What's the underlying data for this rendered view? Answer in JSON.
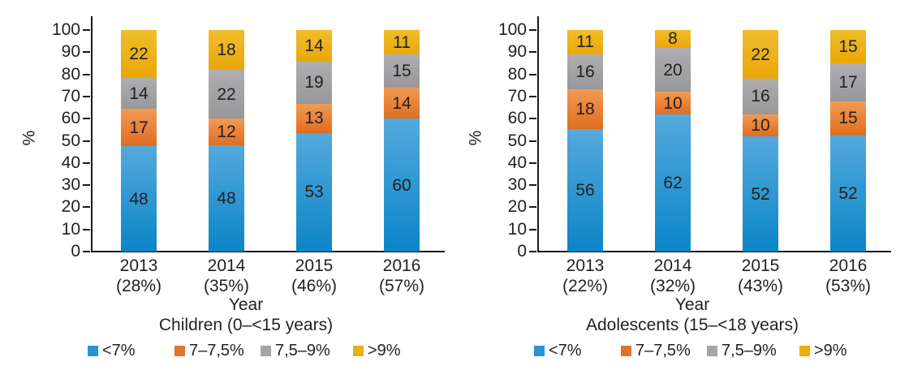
{
  "text_color": "#231f20",
  "axis_color": "#1a1a1a",
  "series_styles": [
    {
      "name": "<7%",
      "gradient_top": "#55a9dc",
      "gradient_bottom": "#0a85c7",
      "legend_color": "#2696d2"
    },
    {
      "name": "7–7,5%",
      "gradient_top": "#f19b54",
      "gradient_bottom": "#e06d20",
      "legend_color": "#e0752c"
    },
    {
      "name": "7,5–9%",
      "gradient_top": "#aeaeb0",
      "gradient_bottom": "#98989a",
      "legend_color": "#a5a5a7"
    },
    {
      "name": ">9%",
      "gradient_top": "#f0bd2c",
      "gradient_bottom": "#e9a708",
      "legend_color": "#eab00e"
    }
  ],
  "chart_data": [
    {
      "type": "bar",
      "stacked": true,
      "group_label": "Children (0–<15 years)",
      "xlabel": "Year",
      "ylabel": "%",
      "ylim": [
        0,
        100
      ],
      "yticks": [
        0,
        10,
        20,
        30,
        40,
        50,
        60,
        70,
        80,
        90,
        100
      ],
      "grid": false,
      "legend_position": "bottom",
      "categories": [
        "2013",
        "2014",
        "2015",
        "2016"
      ],
      "category_sublabels": [
        "(28%)",
        "(35%)",
        "(46%)",
        "(57%)"
      ],
      "series": [
        {
          "name": "<7%",
          "values": [
            48,
            48,
            53,
            60
          ]
        },
        {
          "name": "7–7,5%",
          "values": [
            17,
            12,
            13,
            14
          ]
        },
        {
          "name": "7,5–9%",
          "values": [
            14,
            22,
            19,
            15
          ]
        },
        {
          "name": ">9%",
          "values": [
            22,
            18,
            14,
            11
          ]
        }
      ],
      "legend": [
        "<7%",
        "7–7,5%",
        "7,5–9%",
        ">9%"
      ]
    },
    {
      "type": "bar",
      "stacked": true,
      "group_label": "Adolescents (15–<18 years)",
      "xlabel": "Year",
      "ylabel": "%",
      "ylim": [
        0,
        100
      ],
      "yticks": [
        0,
        10,
        20,
        30,
        40,
        50,
        60,
        70,
        80,
        90,
        100
      ],
      "grid": false,
      "legend_position": "bottom",
      "categories": [
        "2013",
        "2014",
        "2015",
        "2016"
      ],
      "category_sublabels": [
        "(22%)",
        "(32%)",
        "(43%)",
        "(53%)"
      ],
      "series": [
        {
          "name": "<7%",
          "values": [
            56,
            62,
            52,
            52
          ]
        },
        {
          "name": "7–7,5%",
          "values": [
            18,
            10,
            10,
            15
          ]
        },
        {
          "name": "7,5–9%",
          "values": [
            16,
            20,
            16,
            17
          ]
        },
        {
          "name": ">9%",
          "values": [
            11,
            8,
            22,
            15
          ]
        }
      ],
      "legend": [
        "<7%",
        "7–7,5%",
        "7,5–9%",
        ">9%"
      ]
    }
  ]
}
